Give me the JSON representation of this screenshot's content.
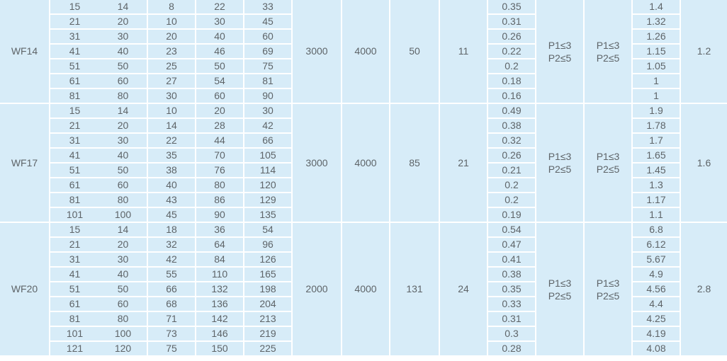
{
  "table": {
    "groups": [
      {
        "model": "WF14",
        "m6": "3000",
        "m7": "4000",
        "m8": "50",
        "m9": "11",
        "m11": "P1≤3\nP2≤5",
        "m12": "P1≤3\nP2≤5",
        "m14": "1.2",
        "rows": [
          [
            "15",
            "14",
            "8",
            "22",
            "33",
            "0.35",
            "1.4"
          ],
          [
            "21",
            "20",
            "10",
            "30",
            "45",
            "0.31",
            "1.32"
          ],
          [
            "31",
            "30",
            "20",
            "40",
            "60",
            "0.26",
            "1.26"
          ],
          [
            "41",
            "40",
            "23",
            "46",
            "69",
            "0.22",
            "1.15"
          ],
          [
            "51",
            "50",
            "25",
            "50",
            "75",
            "0.2",
            "1.05"
          ],
          [
            "61",
            "60",
            "27",
            "54",
            "81",
            "0.18",
            "1"
          ],
          [
            "81",
            "80",
            "30",
            "60",
            "90",
            "0.16",
            "1"
          ]
        ]
      },
      {
        "model": "WF17",
        "m6": "3000",
        "m7": "4000",
        "m8": "85",
        "m9": "21",
        "m11": "P1≤3\nP2≤5",
        "m12": "P1≤3\nP2≤5",
        "m14": "1.6",
        "rows": [
          [
            "15",
            "14",
            "10",
            "20",
            "30",
            "0.49",
            "1.9"
          ],
          [
            "21",
            "20",
            "14",
            "28",
            "42",
            "0.38",
            "1.78"
          ],
          [
            "31",
            "30",
            "22",
            "44",
            "66",
            "0.32",
            "1.7"
          ],
          [
            "41",
            "40",
            "35",
            "70",
            "105",
            "0.26",
            "1.65"
          ],
          [
            "51",
            "50",
            "38",
            "76",
            "114",
            "0.21",
            "1.45"
          ],
          [
            "61",
            "60",
            "40",
            "80",
            "120",
            "0.2",
            "1.3"
          ],
          [
            "81",
            "80",
            "43",
            "86",
            "129",
            "0.2",
            "1.17"
          ],
          [
            "101",
            "100",
            "45",
            "90",
            "135",
            "0.19",
            "1.1"
          ]
        ]
      },
      {
        "model": "WF20",
        "m6": "2000",
        "m7": "4000",
        "m8": "131",
        "m9": "24",
        "m11": "P1≤3\nP2≤5",
        "m12": "P1≤3\nP2≤5",
        "m14": "2.8",
        "rows": [
          [
            "15",
            "14",
            "18",
            "36",
            "54",
            "0.54",
            "6.8"
          ],
          [
            "21",
            "20",
            "32",
            "64",
            "96",
            "0.47",
            "6.12"
          ],
          [
            "31",
            "30",
            "42",
            "84",
            "126",
            "0.41",
            "5.67"
          ],
          [
            "41",
            "40",
            "55",
            "110",
            "165",
            "0.38",
            "4.9"
          ],
          [
            "51",
            "50",
            "66",
            "132",
            "198",
            "0.35",
            "4.56"
          ],
          [
            "61",
            "60",
            "68",
            "136",
            "204",
            "0.33",
            "4.4"
          ],
          [
            "81",
            "80",
            "71",
            "142",
            "213",
            "0.31",
            "4.25"
          ],
          [
            "101",
            "100",
            "73",
            "146",
            "219",
            "0.3",
            "4.19"
          ],
          [
            "121",
            "120",
            "75",
            "150",
            "225",
            "0.28",
            "4.08"
          ]
        ]
      }
    ],
    "colors": {
      "cell_background": "#d7ecf8",
      "grid": "#ffffff",
      "text": "#5e6468"
    }
  }
}
